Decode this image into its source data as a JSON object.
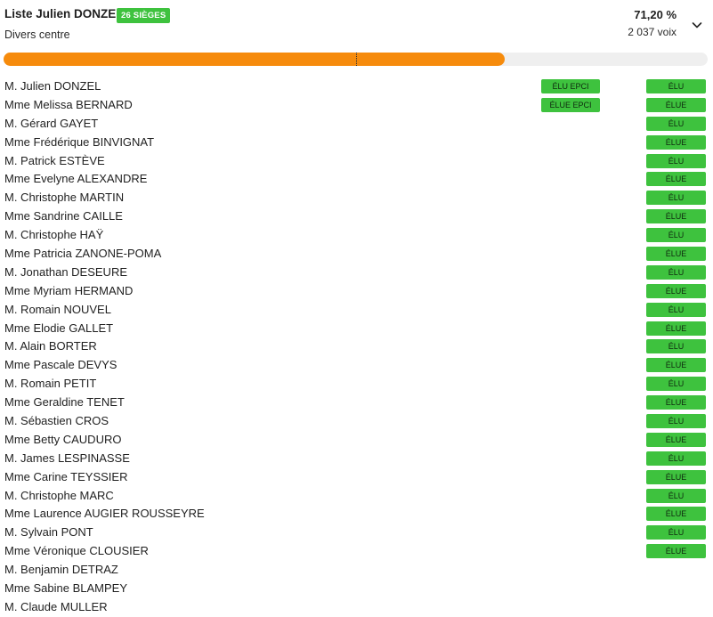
{
  "header": {
    "title": "Liste Julien DONZEL",
    "seats_badge": "26 SIÈGES",
    "subtitle": "Divers centre",
    "percent": "71,20 %",
    "votes": "2 037 voix",
    "expand_icon": "chevron-down-icon"
  },
  "progress": {
    "value_percent": 71.2,
    "majority_marker_percent": 50,
    "color": "#f68b0c"
  },
  "colors": {
    "badge_green": "#3ec23e",
    "bar_track": "#efefef"
  },
  "candidates": [
    {
      "name": "M. Julien DONZEL",
      "epci": "ÉLU EPCI",
      "status": "ÉLU"
    },
    {
      "name": "Mme Melissa BERNARD",
      "epci": "ÉLUE EPCI",
      "status": "ÉLUE"
    },
    {
      "name": "M. Gérard GAYET",
      "epci": "",
      "status": "ÉLU"
    },
    {
      "name": "Mme Frédérique BINVIGNAT",
      "epci": "",
      "status": "ÉLUE"
    },
    {
      "name": "M. Patrick ESTÈVE",
      "epci": "",
      "status": "ÉLU"
    },
    {
      "name": "Mme Evelyne ALEXANDRE",
      "epci": "",
      "status": "ÉLUE"
    },
    {
      "name": "M. Christophe MARTIN",
      "epci": "",
      "status": "ÉLU"
    },
    {
      "name": "Mme Sandrine CAILLE",
      "epci": "",
      "status": "ÉLUE"
    },
    {
      "name": "M. Christophe HAŸ",
      "epci": "",
      "status": "ÉLU"
    },
    {
      "name": "Mme Patricia ZANONE-POMA",
      "epci": "",
      "status": "ÉLUE"
    },
    {
      "name": "M. Jonathan DESEURE",
      "epci": "",
      "status": "ÉLU"
    },
    {
      "name": "Mme Myriam HERMAND",
      "epci": "",
      "status": "ÉLUE"
    },
    {
      "name": "M. Romain NOUVEL",
      "epci": "",
      "status": "ÉLU"
    },
    {
      "name": "Mme Elodie GALLET",
      "epci": "",
      "status": "ÉLUE"
    },
    {
      "name": "M. Alain BORTER",
      "epci": "",
      "status": "ÉLU"
    },
    {
      "name": "Mme Pascale DEVYS",
      "epci": "",
      "status": "ÉLUE"
    },
    {
      "name": "M. Romain PETIT",
      "epci": "",
      "status": "ÉLU"
    },
    {
      "name": "Mme Geraldine TENET",
      "epci": "",
      "status": "ÉLUE"
    },
    {
      "name": "M. Sébastien CROS",
      "epci": "",
      "status": "ÉLU"
    },
    {
      "name": "Mme Betty CAUDURO",
      "epci": "",
      "status": "ÉLUE"
    },
    {
      "name": "M. James LESPINASSE",
      "epci": "",
      "status": "ÉLU"
    },
    {
      "name": "Mme Carine TEYSSIER",
      "epci": "",
      "status": "ÉLUE"
    },
    {
      "name": "M. Christophe MARC",
      "epci": "",
      "status": "ÉLU"
    },
    {
      "name": "Mme Laurence AUGIER ROUSSEYRE",
      "epci": "",
      "status": "ÉLUE"
    },
    {
      "name": "M. Sylvain PONT",
      "epci": "",
      "status": "ÉLU"
    },
    {
      "name": "Mme Véronique CLOUSIER",
      "epci": "",
      "status": "ÉLUE"
    },
    {
      "name": "M. Benjamin DETRAZ",
      "epci": "",
      "status": ""
    },
    {
      "name": "Mme Sabine BLAMPEY",
      "epci": "",
      "status": ""
    },
    {
      "name": "M. Claude MULLER",
      "epci": "",
      "status": ""
    }
  ]
}
